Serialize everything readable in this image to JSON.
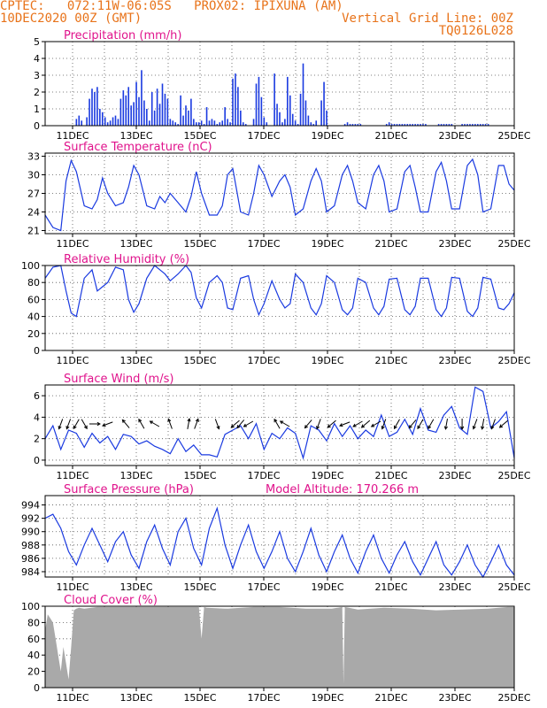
{
  "header": {
    "line1_left": "CPTEC:   072:11W-06:05S   PROX02: IPIXUNA (AM)",
    "line2_left": "10DEC2020 00Z (GMT)",
    "line2_right": "Vertical Grid Line: 00Z",
    "line3_right": "TQ0126L028"
  },
  "colors": {
    "header": "#e8731a",
    "title": "#e0138c",
    "series": "#1a3ae0",
    "cloud": "#a9a9a9",
    "grid": "#555555"
  },
  "chart_data": [
    {
      "type": "bar",
      "title": "Precipitation (mm/h)",
      "x_tick_labels": [
        "11DEC",
        "13DEC",
        "15DEC",
        "17DEC",
        "19DEC",
        "21DEC",
        "23DEC",
        "25DEC"
      ],
      "xlim_hours": [
        0,
        360
      ],
      "ylim": [
        0,
        5
      ],
      "y_ticks": [
        0,
        1,
        2,
        3,
        4,
        5
      ],
      "x": [
        24,
        26,
        28,
        32,
        34,
        36,
        38,
        40,
        42,
        44,
        46,
        48,
        50,
        52,
        54,
        56,
        58,
        60,
        62,
        64,
        66,
        68,
        70,
        72,
        74,
        76,
        78,
        80,
        82,
        84,
        86,
        88,
        90,
        92,
        94,
        96,
        98,
        100,
        102,
        104,
        106,
        108,
        110,
        112,
        114,
        116,
        118,
        120,
        122,
        124,
        126,
        128,
        130,
        132,
        134,
        136,
        138,
        140,
        142,
        144,
        146,
        148,
        150,
        152,
        154,
        160,
        162,
        164,
        166,
        168,
        170,
        176,
        178,
        180,
        182,
        184,
        186,
        188,
        190,
        192,
        194,
        196,
        198,
        200,
        202,
        204,
        206,
        208,
        212,
        214,
        216,
        230,
        232,
        234,
        236,
        238,
        240,
        242,
        262,
        264,
        266,
        268,
        270,
        272,
        274,
        276,
        278,
        280,
        282,
        284,
        286,
        288,
        290,
        292,
        302,
        304,
        306,
        308,
        310,
        312,
        320,
        322,
        324,
        326,
        328,
        330,
        332,
        334,
        336,
        338,
        340
      ],
      "values": [
        0.4,
        0.6,
        0.3,
        0.5,
        1.6,
        2.2,
        2.0,
        2.3,
        1.0,
        0.8,
        0.5,
        0.2,
        0.3,
        0.5,
        0.6,
        0.4,
        1.6,
        2.1,
        1.8,
        2.3,
        1.2,
        1.4,
        2.6,
        1.7,
        3.3,
        1.5,
        1.0,
        0.3,
        2.0,
        0.9,
        2.2,
        1.3,
        2.5,
        1.9,
        1.6,
        0.4,
        0.3,
        0.2,
        0.1,
        1.8,
        0.6,
        1.2,
        0.9,
        1.6,
        0.4,
        0.2,
        0.2,
        0.3,
        0.1,
        1.1,
        0.3,
        0.4,
        0.3,
        0.1,
        0.2,
        0.3,
        1.1,
        0.4,
        0.2,
        2.8,
        3.1,
        2.3,
        0.9,
        0.2,
        0.1,
        0.4,
        2.5,
        2.9,
        1.7,
        0.5,
        0.2,
        3.1,
        1.3,
        0.8,
        0.2,
        0.4,
        2.9,
        1.8,
        0.7,
        0.3,
        0.1,
        1.9,
        3.7,
        1.5,
        0.6,
        0.2,
        0.1,
        0.3,
        1.5,
        2.6,
        0.9,
        0.1,
        0.2,
        0.1,
        0.1,
        0.1,
        0.1,
        0.1,
        0.1,
        0.2,
        0.1,
        0.1,
        0.1,
        0.1,
        0.1,
        0.1,
        0.1,
        0.1,
        0.1,
        0.1,
        0.1,
        0.1,
        0.1,
        0.1,
        0.1,
        0.1,
        0.1,
        0.1,
        0.1,
        0.1,
        0.1,
        0.1,
        0.1,
        0.1,
        0.1,
        0.1,
        0.1,
        0.1,
        0.1,
        0.1,
        0.1
      ]
    },
    {
      "type": "line",
      "title": "Surface Temperature (nC)",
      "x_tick_labels": [
        "11DEC",
        "13DEC",
        "15DEC",
        "17DEC",
        "19DEC",
        "21DEC",
        "23DEC",
        "25DEC"
      ],
      "xlim_hours": [
        0,
        360
      ],
      "ylim": [
        20.5,
        33.5
      ],
      "y_ticks": [
        21,
        24,
        27,
        30,
        33
      ],
      "x": [
        0,
        6,
        12,
        16,
        20,
        24,
        30,
        36,
        40,
        44,
        48,
        54,
        60,
        64,
        68,
        72,
        78,
        84,
        88,
        92,
        96,
        102,
        108,
        112,
        116,
        120,
        126,
        132,
        136,
        140,
        144,
        150,
        156,
        160,
        164,
        168,
        174,
        180,
        184,
        188,
        192,
        198,
        204,
        208,
        212,
        216,
        222,
        228,
        232,
        236,
        240,
        246,
        252,
        256,
        260,
        264,
        270,
        276,
        280,
        284,
        288,
        294,
        300,
        304,
        308,
        312,
        318,
        324,
        328,
        332,
        336,
        342,
        348,
        352,
        356,
        360
      ],
      "values": [
        23.5,
        21.5,
        21.0,
        29.0,
        32.3,
        30.5,
        25.0,
        24.5,
        26.0,
        29.5,
        27.0,
        25.0,
        25.5,
        28.0,
        31.5,
        30.0,
        25.0,
        24.5,
        26.5,
        25.5,
        27.0,
        25.5,
        24.0,
        26.5,
        30.5,
        27.0,
        23.5,
        23.5,
        25.0,
        30.0,
        31.0,
        24.0,
        23.5,
        27.0,
        31.5,
        30.0,
        26.5,
        29.0,
        30.0,
        28.0,
        23.5,
        24.5,
        29.0,
        31.0,
        29.0,
        24.0,
        25.0,
        30.0,
        31.5,
        29.0,
        25.5,
        24.5,
        30.0,
        31.5,
        29.0,
        24.0,
        24.5,
        30.5,
        31.5,
        28.0,
        24.0,
        24.0,
        30.5,
        32.0,
        29.0,
        24.5,
        24.5,
        31.5,
        32.5,
        30.0,
        24.0,
        24.5,
        31.5,
        31.5,
        28.5,
        27.5
      ]
    },
    {
      "type": "line",
      "title": "Relative Humidity (%)",
      "x_tick_labels": [
        "11DEC",
        "13DEC",
        "15DEC",
        "17DEC",
        "19DEC",
        "21DEC",
        "23DEC",
        "25DEC"
      ],
      "xlim_hours": [
        0,
        360
      ],
      "ylim": [
        0,
        100
      ],
      "y_ticks": [
        0,
        20,
        40,
        60,
        80,
        100
      ],
      "x": [
        0,
        6,
        12,
        16,
        20,
        24,
        30,
        36,
        40,
        44,
        48,
        54,
        60,
        64,
        68,
        72,
        78,
        84,
        88,
        92,
        96,
        102,
        108,
        112,
        116,
        120,
        126,
        132,
        136,
        140,
        144,
        150,
        156,
        160,
        164,
        168,
        174,
        180,
        184,
        188,
        192,
        198,
        204,
        208,
        212,
        216,
        222,
        228,
        232,
        236,
        240,
        246,
        252,
        256,
        260,
        264,
        270,
        276,
        280,
        284,
        288,
        294,
        300,
        304,
        308,
        312,
        318,
        324,
        328,
        332,
        336,
        342,
        348,
        352,
        356,
        360
      ],
      "values": [
        85,
        98,
        100,
        70,
        44,
        40,
        85,
        95,
        70,
        75,
        80,
        98,
        95,
        60,
        45,
        55,
        85,
        100,
        95,
        90,
        82,
        90,
        100,
        92,
        62,
        50,
        80,
        88,
        80,
        50,
        48,
        85,
        88,
        60,
        42,
        55,
        82,
        60,
        50,
        55,
        90,
        80,
        50,
        42,
        55,
        88,
        80,
        48,
        42,
        50,
        85,
        80,
        50,
        42,
        52,
        84,
        85,
        48,
        42,
        52,
        85,
        85,
        48,
        40,
        50,
        86,
        85,
        46,
        40,
        50,
        86,
        84,
        50,
        48,
        55,
        68
      ]
    },
    {
      "type": "line",
      "title": "Surface Wind (m/s)",
      "x_tick_labels": [
        "11DEC",
        "13DEC",
        "15DEC",
        "17DEC",
        "19DEC",
        "21DEC",
        "23DEC",
        "25DEC"
      ],
      "xlim_hours": [
        0,
        360
      ],
      "ylim": [
        -0.5,
        7
      ],
      "y_ticks": [
        0,
        2,
        4,
        6
      ],
      "x": [
        0,
        6,
        12,
        18,
        24,
        30,
        36,
        42,
        48,
        54,
        60,
        66,
        72,
        78,
        84,
        90,
        96,
        102,
        108,
        114,
        120,
        126,
        132,
        138,
        144,
        150,
        156,
        162,
        168,
        174,
        180,
        186,
        192,
        198,
        204,
        210,
        216,
        222,
        228,
        234,
        240,
        246,
        252,
        258,
        264,
        270,
        276,
        282,
        288,
        294,
        300,
        306,
        312,
        318,
        324,
        330,
        336,
        342,
        348,
        354,
        360
      ],
      "values": [
        2.0,
        3.2,
        1.0,
        2.8,
        2.5,
        1.2,
        2.5,
        1.6,
        2.2,
        1.0,
        2.4,
        2.2,
        1.5,
        1.8,
        1.3,
        1.0,
        0.6,
        2.0,
        0.8,
        1.4,
        0.5,
        0.5,
        0.3,
        2.4,
        2.8,
        3.2,
        2.0,
        3.4,
        1.0,
        2.5,
        2.0,
        3.0,
        2.5,
        0.2,
        3.2,
        2.8,
        1.8,
        3.4,
        2.2,
        3.2,
        2.0,
        2.8,
        2.2,
        4.2,
        2.2,
        2.6,
        3.8,
        2.4,
        4.8,
        2.8,
        2.6,
        4.2,
        5.0,
        3.0,
        2.4,
        6.8,
        6.4,
        3.0,
        3.6,
        4.5,
        0.2
      ],
      "arrows_x": [
        12,
        18,
        24,
        30,
        38,
        48,
        62,
        74,
        84,
        96,
        110,
        116,
        132,
        146,
        150,
        156,
        178,
        184,
        202,
        210,
        220,
        230,
        240,
        246,
        254,
        260,
        270,
        282,
        288,
        296,
        308,
        320,
        330,
        336,
        344,
        352
      ],
      "arrows_dir_deg": [
        200,
        200,
        210,
        150,
        90,
        250,
        320,
        330,
        300,
        340,
        10,
        20,
        160,
        230,
        220,
        240,
        330,
        300,
        220,
        200,
        230,
        250,
        240,
        230,
        240,
        200,
        210,
        220,
        210,
        210,
        190,
        180,
        200,
        190,
        200,
        230
      ]
    },
    {
      "type": "line",
      "title": "Surface Pressure (hPa)",
      "annotation": "Model Altitude: 170.266 m",
      "x_tick_labels": [
        "11DEC",
        "13DEC",
        "15DEC",
        "17DEC",
        "19DEC",
        "21DEC",
        "23DEC",
        "25DEC"
      ],
      "xlim_hours": [
        0,
        360
      ],
      "ylim": [
        983.2,
        995.4
      ],
      "y_ticks": [
        984,
        986,
        988,
        990,
        992,
        994
      ],
      "x": [
        0,
        6,
        12,
        18,
        24,
        30,
        36,
        42,
        48,
        54,
        60,
        66,
        72,
        78,
        84,
        90,
        96,
        102,
        108,
        114,
        120,
        126,
        132,
        138,
        144,
        150,
        156,
        162,
        168,
        174,
        180,
        186,
        192,
        198,
        204,
        210,
        216,
        222,
        228,
        234,
        240,
        246,
        252,
        258,
        264,
        270,
        276,
        282,
        288,
        294,
        300,
        306,
        312,
        318,
        324,
        330,
        336,
        342,
        348,
        354,
        360
      ],
      "values": [
        992.0,
        992.6,
        990.5,
        987.0,
        985.0,
        988.0,
        990.5,
        988.0,
        985.5,
        988.5,
        990.0,
        986.5,
        984.5,
        988.5,
        991.0,
        987.5,
        985.0,
        990.0,
        992.0,
        987.5,
        985.0,
        990.5,
        993.5,
        988.0,
        984.5,
        988.0,
        991.0,
        987.0,
        984.5,
        987.0,
        990.0,
        986.0,
        984.0,
        987.0,
        990.5,
        986.5,
        984.0,
        987.0,
        989.5,
        986.0,
        983.8,
        987.0,
        989.5,
        986.0,
        983.8,
        986.5,
        988.5,
        985.5,
        983.5,
        986.0,
        988.5,
        985.0,
        983.5,
        985.5,
        988.0,
        985.0,
        983.2,
        985.5,
        988.0,
        985.0,
        983.5
      ]
    },
    {
      "type": "area",
      "title": "Cloud Cover (%)",
      "x_tick_labels": [
        "11DEC",
        "13DEC",
        "15DEC",
        "17DEC",
        "19DEC",
        "21DEC",
        "23DEC",
        "25DEC"
      ],
      "xlim_hours": [
        0,
        360
      ],
      "ylim": [
        0,
        100
      ],
      "y_ticks": [
        0,
        20,
        40,
        60,
        80,
        100
      ],
      "x": [
        0,
        2,
        4,
        6,
        8,
        10,
        12,
        14,
        16,
        18,
        20,
        22,
        24,
        26,
        30,
        40,
        60,
        80,
        100,
        118,
        120,
        122,
        124,
        140,
        160,
        180,
        200,
        220,
        228,
        229,
        230,
        240,
        260,
        280,
        300,
        320,
        340,
        355,
        360
      ],
      "values": [
        70,
        90,
        85,
        80,
        60,
        40,
        20,
        50,
        30,
        10,
        50,
        95,
        97,
        98,
        97,
        99,
        99,
        99,
        99,
        99,
        60,
        99,
        98,
        97,
        99,
        99,
        97,
        97,
        99,
        5,
        99,
        96,
        98,
        97,
        95,
        96,
        97,
        99,
        99
      ]
    }
  ]
}
